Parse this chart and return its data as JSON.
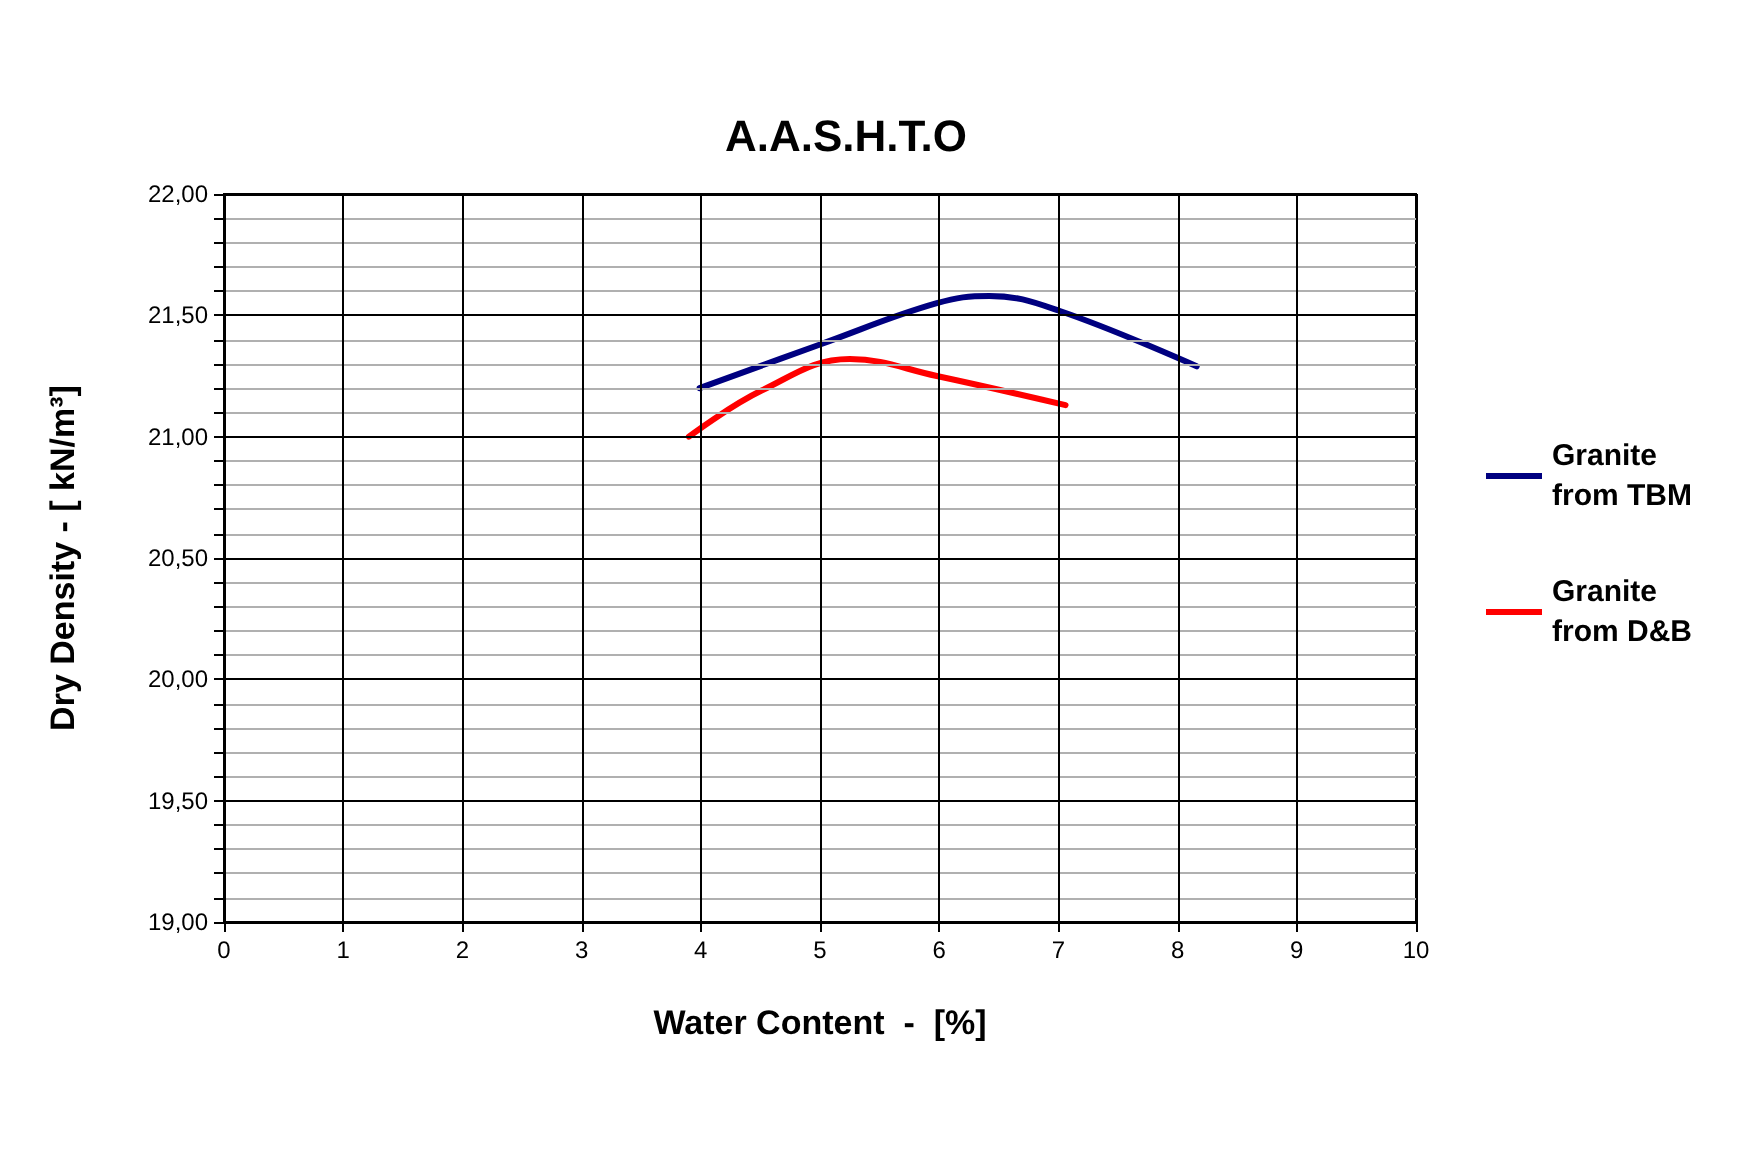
{
  "chart_data": {
    "type": "line",
    "title": "A.A.S.H.T.O",
    "xlabel": "Water Content  -  [%]",
    "ylabel": "Dry Density - [ kN/m³]",
    "xlim": [
      0,
      10
    ],
    "xticks": [
      0,
      1,
      2,
      3,
      4,
      5,
      6,
      7,
      8,
      9,
      10
    ],
    "ylim": [
      19,
      22
    ],
    "yticks": [
      {
        "value": 19,
        "label": "19,00"
      },
      {
        "value": 19.1,
        "label": null
      },
      {
        "value": 19.2,
        "label": null
      },
      {
        "value": 19.3,
        "label": null
      },
      {
        "value": 19.4,
        "label": null
      },
      {
        "value": 19.5,
        "label": "19,50"
      },
      {
        "value": 19.6,
        "label": null
      },
      {
        "value": 19.7,
        "label": null
      },
      {
        "value": 19.8,
        "label": null
      },
      {
        "value": 19.9,
        "label": null
      },
      {
        "value": 20,
        "label": "20,00"
      },
      {
        "value": 20.1,
        "label": null
      },
      {
        "value": 20.2,
        "label": null
      },
      {
        "value": 20.3,
        "label": null
      },
      {
        "value": 20.4,
        "label": null
      },
      {
        "value": 20.5,
        "label": "20,50"
      },
      {
        "value": 20.6,
        "label": null
      },
      {
        "value": 20.7,
        "label": null
      },
      {
        "value": 20.8,
        "label": null
      },
      {
        "value": 20.9,
        "label": null
      },
      {
        "value": 21,
        "label": "21,00"
      },
      {
        "value": 21.1,
        "label": null
      },
      {
        "value": 21.2,
        "label": null
      },
      {
        "value": 21.3,
        "label": null
      },
      {
        "value": 21.4,
        "label": null
      },
      {
        "value": 21.5,
        "label": "21,50"
      },
      {
        "value": 21.6,
        "label": null
      },
      {
        "value": 21.7,
        "label": null
      },
      {
        "value": 21.8,
        "label": null
      },
      {
        "value": 21.9,
        "label": null
      },
      {
        "value": 22,
        "label": "22,00"
      }
    ],
    "grid": true,
    "legend": "right",
    "marker": "none",
    "line_style": "solid",
    "series": [
      {
        "name": "Granite from TBM",
        "color": "#000080",
        "x": [
          3.99,
          5.0,
          5.98,
          6.42,
          7.0,
          8.16
        ],
        "values": [
          21.2,
          21.38,
          21.55,
          21.58,
          21.52,
          21.29
        ]
      },
      {
        "name": "Granite from D&B",
        "color": "#ff0000",
        "x": [
          3.9,
          4.51,
          5.25,
          5.98,
          7.06
        ],
        "values": [
          21.0,
          21.19,
          21.32,
          21.25,
          21.13
        ]
      }
    ]
  }
}
